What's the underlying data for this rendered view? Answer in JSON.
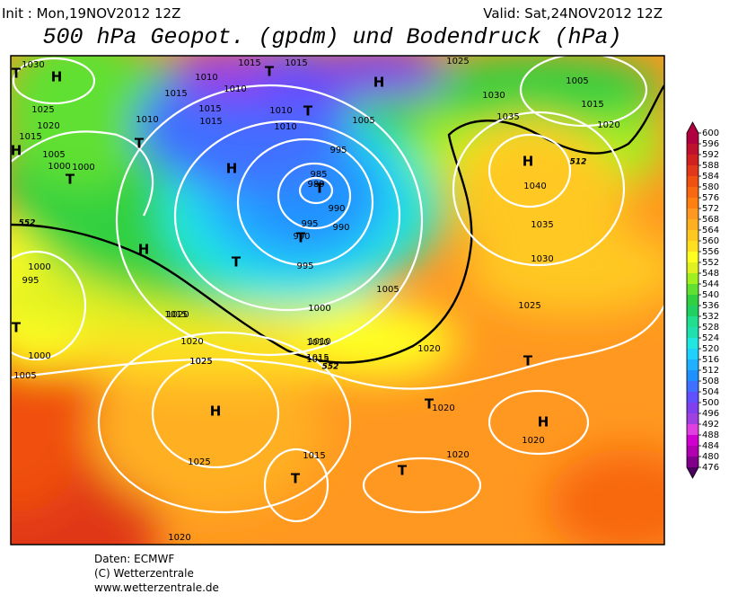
{
  "header": {
    "init": "Init : Mon,19NOV2012 12Z",
    "valid": "Valid: Sat,24NOV2012  12Z",
    "title": "500 hPa Geopot. (gpdm) und Bodendruck (hPa)"
  },
  "colorbar": {
    "ticks": [
      600,
      596,
      592,
      588,
      584,
      580,
      576,
      572,
      568,
      564,
      560,
      556,
      552,
      548,
      544,
      540,
      536,
      532,
      528,
      524,
      520,
      516,
      512,
      508,
      504,
      500,
      496,
      492,
      488,
      484,
      480,
      476
    ],
    "colors": [
      "#b00040",
      "#c01030",
      "#d02020",
      "#e03818",
      "#f05010",
      "#f86810",
      "#ff8010",
      "#ff9820",
      "#ffb020",
      "#ffc820",
      "#ffe020",
      "#ffff20",
      "#e0f020",
      "#a0f020",
      "#60e030",
      "#30d040",
      "#20d060",
      "#20e090",
      "#20e0b0",
      "#20e8e0",
      "#20d0ff",
      "#20b0ff",
      "#2090ff",
      "#4070ff",
      "#6050ff",
      "#8040f0",
      "#a040e0",
      "#e040e0",
      "#d000d0",
      "#b000b0",
      "#80008a",
      "#4b0060"
    ]
  },
  "map": {
    "centers": [
      "H",
      "H",
      "H",
      "H",
      "H",
      "H",
      "H",
      "H",
      "T",
      "T",
      "T",
      "T",
      "T",
      "T",
      "T",
      "T",
      "T",
      "T",
      "T",
      "T",
      "T"
    ],
    "isobar_labels": [
      "1030",
      "1015",
      "1010",
      "1015",
      "1025",
      "1020",
      "1015",
      "1005",
      "1000",
      "1015",
      "1015",
      "1010",
      "1010",
      "1010",
      "1005",
      "1000",
      "995",
      "985",
      "980",
      "990",
      "995",
      "990",
      "990",
      "995",
      "1005",
      "1000",
      "1010",
      "1015",
      "1025",
      "1030",
      "1005",
      "1015",
      "1020",
      "1025",
      "1035",
      "1040",
      "1035",
      "1030",
      "1025",
      "1020",
      "1020",
      "1020",
      "1000",
      "995",
      "1015",
      "1020",
      "1000",
      "1005",
      "1025",
      "1025",
      "1020",
      "1015",
      "1020",
      "1020",
      "1010",
      "1015",
      "1010",
      "1015"
    ],
    "contour_labels": [
      "552",
      "552",
      "512"
    ]
  },
  "footer": {
    "source": "Daten: ECMWF",
    "copyright": "(C) Wetterzentrale",
    "url": "www.wetterzentrale.de"
  }
}
